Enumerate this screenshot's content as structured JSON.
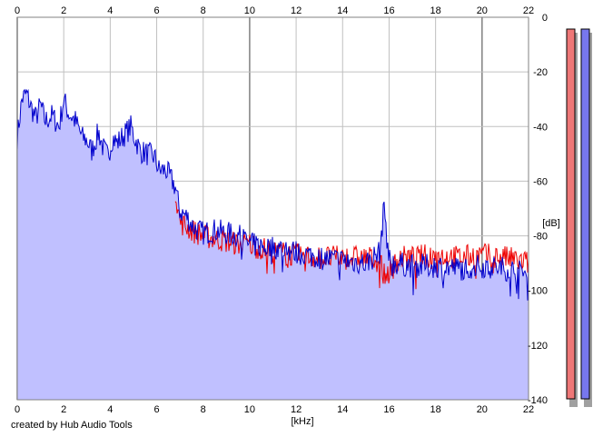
{
  "chart_data": {
    "type": "area",
    "xlabel": "[kHz]",
    "ylabel": "[dB]",
    "xlim": [
      0,
      22
    ],
    "ylim": [
      -140,
      0
    ],
    "x_ticks": [
      "0",
      "2",
      "4",
      "6",
      "8",
      "10",
      "12",
      "14",
      "16",
      "18",
      "20",
      "22"
    ],
    "y_ticks": [
      "0",
      "-20",
      "-40",
      "-60",
      "-80",
      "-100",
      "-120",
      "-140"
    ],
    "grid": true,
    "colors": {
      "fill": "#c0c0ff",
      "left": "#0000cc",
      "right": "#ee0000",
      "grid": "#c0c0c0",
      "major_grid": "#808080"
    },
    "series": [
      {
        "channel": "left",
        "x": [
          0,
          0.2,
          0.4,
          0.6,
          0.8,
          1.0,
          1.2,
          1.5,
          1.8,
          2.0,
          2.2,
          2.5,
          2.8,
          3.0,
          3.2,
          3.5,
          3.7,
          3.9,
          4.1,
          4.3,
          4.6,
          4.9,
          5.0,
          5.3,
          5.6,
          5.9,
          6.1,
          6.4,
          6.6,
          6.8,
          6.9,
          7.0,
          7.3,
          7.6,
          8.0,
          8.5,
          9.0,
          9.5,
          10.0,
          10.5,
          11.0,
          12.0,
          13.0,
          14.0,
          15.0,
          15.6,
          15.8,
          15.9,
          16.0,
          16.2,
          17.0,
          18.0,
          19.0,
          20.0,
          21.0,
          22.0
        ],
        "y": [
          -44,
          -30,
          -28,
          -33,
          -37,
          -32,
          -38,
          -36,
          -40,
          -30,
          -35,
          -38,
          -44,
          -45,
          -49,
          -42,
          -48,
          -51,
          -44,
          -46,
          -43,
          -40,
          -43,
          -49,
          -50,
          -51,
          -56,
          -56,
          -59,
          -62,
          -67,
          -71,
          -73,
          -77,
          -79,
          -78,
          -79,
          -80,
          -83,
          -84,
          -84,
          -86,
          -88,
          -89,
          -90,
          -86,
          -68,
          -80,
          -89,
          -90,
          -91,
          -91,
          -92,
          -91,
          -92,
          -94
        ]
      },
      {
        "channel": "right",
        "x": [
          6.8,
          7.0,
          7.5,
          8.0,
          8.5,
          9.0,
          9.5,
          10.0,
          11.0,
          12.0,
          13.0,
          14.0,
          15.0,
          15.6,
          15.8,
          16.0,
          16.5,
          17.0,
          18.0,
          19.0,
          20.0,
          21.0,
          22.0
        ],
        "y": [
          -63,
          -75,
          -78,
          -80,
          -81,
          -82,
          -83,
          -83,
          -86,
          -87,
          -88,
          -88,
          -88,
          -89,
          -95,
          -93,
          -88,
          -88,
          -87,
          -88,
          -87,
          -88,
          -90
        ]
      }
    ],
    "meters": [
      {
        "channel": "left",
        "color": "#ee7777"
      },
      {
        "channel": "right",
        "color": "#7777ee"
      }
    ]
  },
  "footer": {
    "credit": "created by Hub Audio Tools"
  }
}
